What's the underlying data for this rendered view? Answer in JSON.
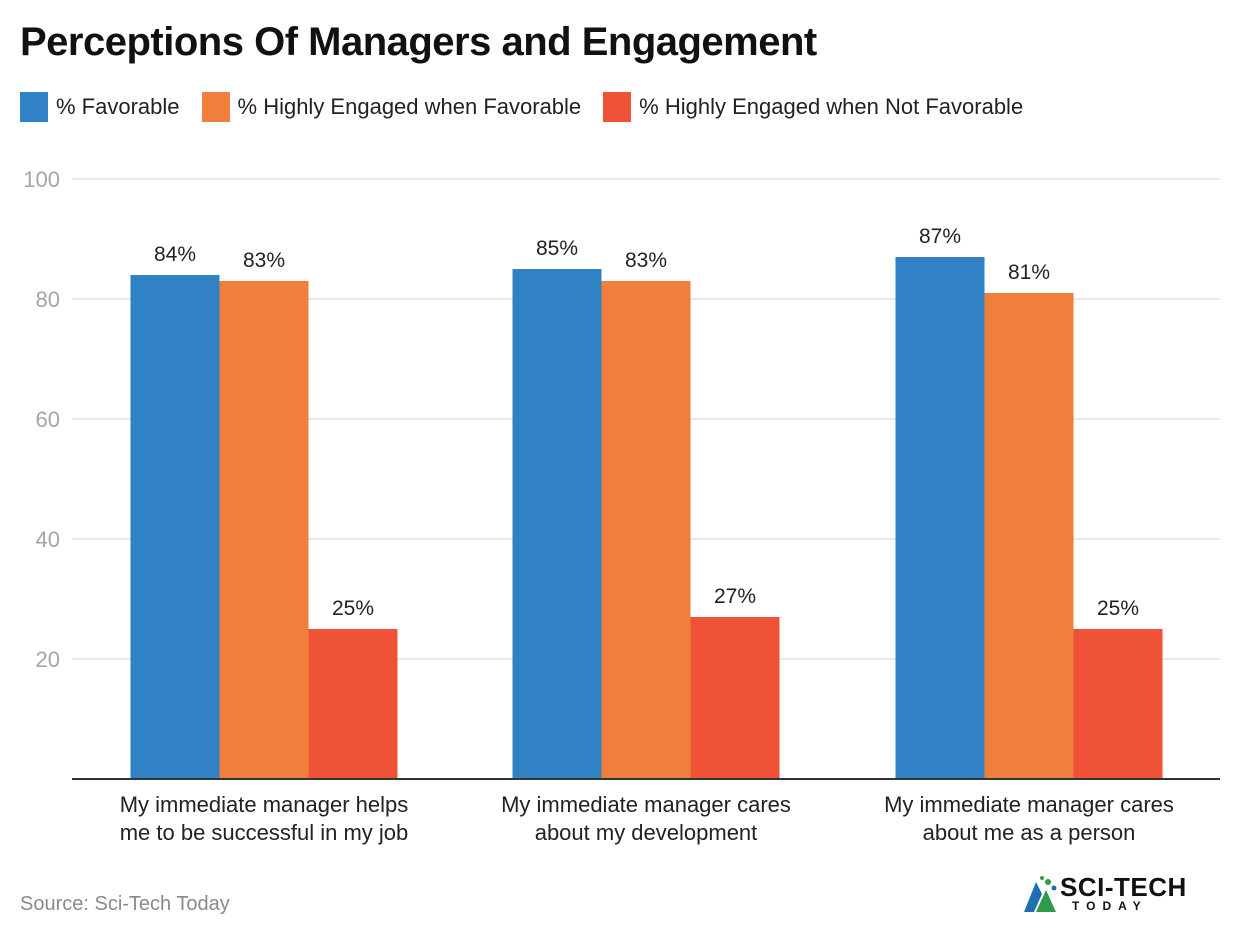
{
  "chart_data": {
    "type": "bar",
    "title": "Perceptions Of Managers and Engagement",
    "xlabel": "",
    "ylabel": "",
    "ylim": [
      0,
      100
    ],
    "yticks": [
      20,
      40,
      60,
      80,
      100
    ],
    "grid": true,
    "legend_position": "top-left",
    "categories": [
      [
        "My immediate manager helps",
        "me to be successful in my job"
      ],
      [
        "My immediate manager cares",
        "about my development"
      ],
      [
        "My immediate manager cares",
        "about me as a person"
      ]
    ],
    "series": [
      {
        "name": "% Favorable",
        "color": "#3182c5",
        "values": [
          84,
          85,
          87
        ],
        "labels": [
          "84%",
          "85%",
          "87%"
        ]
      },
      {
        "name": "% Highly Engaged when Favorable",
        "color": "#f07f3c",
        "values": [
          83,
          83,
          81
        ],
        "labels": [
          "83%",
          "83%",
          "81%"
        ]
      },
      {
        "name": "% Highly Engaged when Not Favorable",
        "color": "#ef5236",
        "values": [
          25,
          27,
          25
        ],
        "labels": [
          "25%",
          "27%",
          "25%"
        ]
      }
    ]
  },
  "footer": {
    "source": "Source: Sci-Tech Today"
  },
  "logo": {
    "main": "SCI-TECH",
    "sub": "TODAY",
    "icon": "sci-tech-logo-icon",
    "colors": [
      "#2f9a4a",
      "#1f6fb2"
    ]
  }
}
